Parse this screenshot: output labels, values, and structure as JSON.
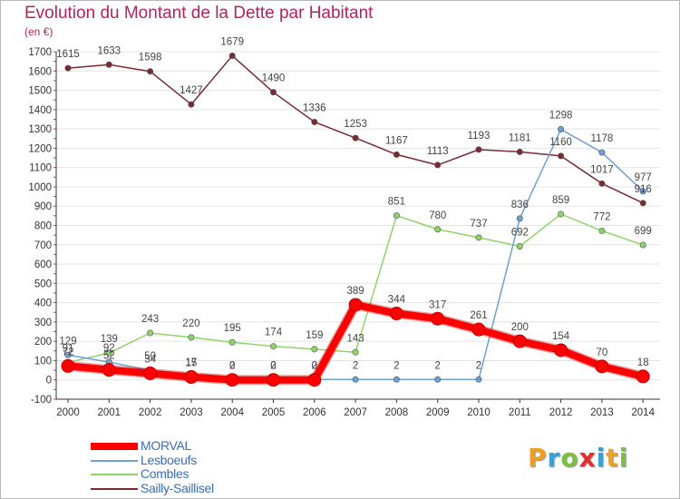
{
  "chart_data": {
    "type": "line",
    "title": "Evolution du Montant de la Dette par Habitant",
    "unit_label": "(en €)",
    "x": [
      "2000",
      "2001",
      "2002",
      "2003",
      "2004",
      "2005",
      "2006",
      "2007",
      "2008",
      "2009",
      "2010",
      "2011",
      "2012",
      "2013",
      "2014"
    ],
    "y_ticks": [
      "-100",
      "0",
      "100",
      "200",
      "300",
      "400",
      "500",
      "600",
      "700",
      "800",
      "900",
      "1000",
      "1100",
      "1200",
      "1300",
      "1400",
      "1500",
      "1600",
      "1700"
    ],
    "ylim": [
      -100,
      1700
    ],
    "grid": "horizontal",
    "legend_position": "bottom-left",
    "series": [
      {
        "name": "MORVAL",
        "color": "#ff0000",
        "values": [
          72,
          52,
          34,
          15,
          0,
          0,
          0,
          389,
          344,
          317,
          261,
          200,
          154,
          70,
          18
        ],
        "labels": [
          "72",
          "52",
          "34",
          "15",
          "0",
          "0",
          "0",
          "389",
          "344",
          "317",
          "261",
          "200",
          "154",
          "70",
          "18"
        ]
      },
      {
        "name": "Lesboeufs",
        "color": "#6fa0d0",
        "values": [
          129,
          92,
          50,
          17,
          2,
          2,
          2,
          2,
          2,
          2,
          2,
          836,
          1298,
          1178,
          977
        ],
        "labels": [
          "129",
          "92",
          "50",
          "17",
          "2",
          "2",
          "2",
          "2",
          "2",
          "2",
          "2",
          "836",
          "1298",
          "1178",
          "977"
        ]
      },
      {
        "name": "Combles",
        "color": "#8fd46a",
        "values": [
          91,
          139,
          243,
          220,
          195,
          174,
          159,
          143,
          851,
          780,
          737,
          692,
          859,
          772,
          699
        ],
        "labels": [
          "91",
          "139",
          "243",
          "220",
          "195",
          "174",
          "159",
          "143",
          "851",
          "780",
          "737",
          "692",
          "859",
          "772",
          "699"
        ]
      },
      {
        "name": "Sailly-Saillisel",
        "color": "#7a2a32",
        "values": [
          1615,
          1633,
          1598,
          1427,
          1679,
          1490,
          1336,
          1253,
          1167,
          1113,
          1193,
          1181,
          1160,
          1017,
          916
        ],
        "labels": [
          "1615",
          "1633",
          "1598",
          "1427",
          "1679",
          "1490",
          "1336",
          "1253",
          "1167",
          "1113",
          "1193",
          "1181",
          "1160",
          "1017",
          "916"
        ]
      }
    ]
  },
  "legend": {
    "items": [
      {
        "label": "MORVAL",
        "color": "#ff0000"
      },
      {
        "label": "Lesboeufs",
        "color": "#6fa0d0"
      },
      {
        "label": "Combles",
        "color": "#8fd46a"
      },
      {
        "label": "Sailly-Saillisel",
        "color": "#7a2a32"
      }
    ]
  },
  "logo": {
    "text": "Proxiti",
    "colors": [
      "#f0a020",
      "#3aa0d8",
      "#7cc040",
      "#e03030",
      "#3aa0d8",
      "#f0a020",
      "#7cc040"
    ]
  }
}
